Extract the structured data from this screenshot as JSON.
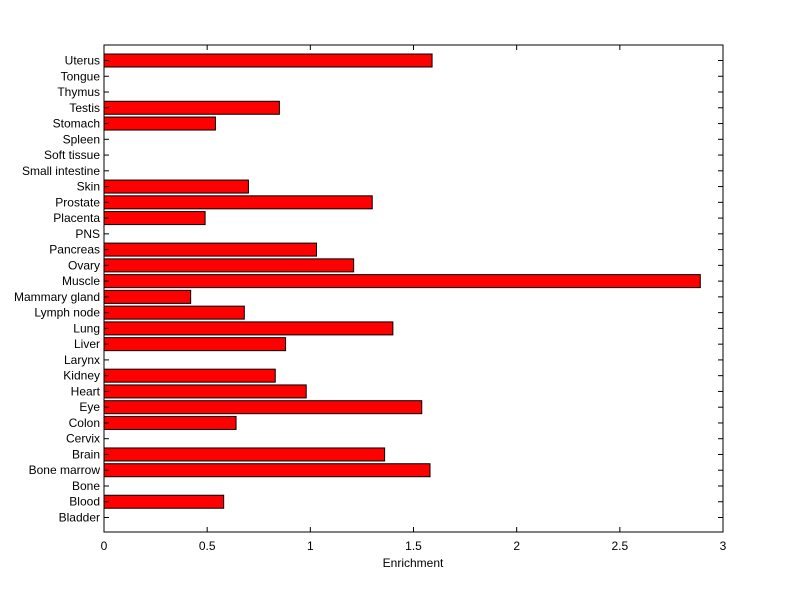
{
  "chart_data": {
    "type": "bar",
    "orientation": "horizontal",
    "categories": [
      "Bladder",
      "Blood",
      "Bone",
      "Bone marrow",
      "Brain",
      "Cervix",
      "Colon",
      "Eye",
      "Heart",
      "Kidney",
      "Larynx",
      "Liver",
      "Lung",
      "Lymph node",
      "Mammary gland",
      "Muscle",
      "Ovary",
      "Pancreas",
      "PNS",
      "Placenta",
      "Prostate",
      "Skin",
      "Small intestine",
      "Soft tissue",
      "Spleen",
      "Stomach",
      "Testis",
      "Thymus",
      "Tongue",
      "Uterus"
    ],
    "values": [
      0,
      0.58,
      0,
      1.58,
      1.36,
      0,
      0.64,
      1.54,
      0.98,
      0.83,
      0,
      0.88,
      1.4,
      0.68,
      0.42,
      2.89,
      1.21,
      1.03,
      0,
      0.49,
      1.3,
      0.7,
      0,
      0,
      0,
      0.54,
      0.85,
      0,
      0,
      1.59
    ],
    "xlabel": "Enrichment",
    "ylabel": "",
    "title": "",
    "xlim": [
      0,
      3
    ],
    "xticks": [
      "0",
      "0.5",
      "1",
      "1.5",
      "2",
      "2.5",
      "3"
    ],
    "bar_color": "#ff0000",
    "grid": false,
    "legend": "none"
  }
}
